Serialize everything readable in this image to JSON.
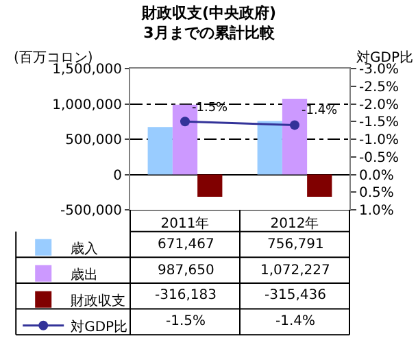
{
  "chart_data": {
    "type": "bar",
    "title": "財政収支(中央政府)\n3月までの累計比較",
    "ylabel": "(百万コロン)",
    "y2label": "対GDP比",
    "categories": [
      "2011年",
      "2012年"
    ],
    "series": [
      {
        "name": "歳入",
        "color": "#99ccff",
        "values": [
          671467,
          756791
        ],
        "value_labels": [
          "671,467",
          "756,791"
        ]
      },
      {
        "name": "歳出",
        "color": "#cc99ff",
        "values": [
          987650,
          1072227
        ],
        "value_labels": [
          "987,650",
          "1,072,227"
        ]
      },
      {
        "name": "財政収支",
        "color": "#800000",
        "values": [
          -316183,
          -315436
        ],
        "value_labels": [
          "-316,183",
          "-315,436"
        ]
      },
      {
        "name": "対GDP比",
        "type": "line",
        "axis": "y2",
        "color": "#333399",
        "values": [
          -1.5,
          -1.4
        ],
        "value_labels": [
          "-1.5%",
          "-1.4%"
        ]
      }
    ],
    "ylim": [
      -500000,
      1500000
    ],
    "yticks": [
      {
        "value": -500000,
        "label": "-500,000"
      },
      0,
      {
        "value": 500000,
        "label": "500,000"
      },
      {
        "value": 1000000,
        "label": "1,000,000"
      },
      {
        "value": 1500000,
        "label": "1,500,000"
      }
    ],
    "y2lim": [
      1.0,
      -3.0
    ],
    "y2ticks": [
      {
        "value": 1.0,
        "label": "1.0%"
      },
      {
        "value": 0.5,
        "label": "0.5%"
      },
      {
        "value": 0.0,
        "label": "0.0%"
      },
      {
        "value": -0.5,
        "label": "-0.5%"
      },
      {
        "value": -1.0,
        "label": "-1.0%"
      },
      {
        "value": -1.5,
        "label": "-1.5%"
      },
      {
        "value": -2.0,
        "label": "-2.0%"
      },
      {
        "value": -2.5,
        "label": "-2.5%"
      },
      {
        "value": -3.0,
        "label": "-3.0%"
      }
    ],
    "grid": "y",
    "legend": "bottom left",
    "marker": "circle",
    "line_style": "solid"
  }
}
